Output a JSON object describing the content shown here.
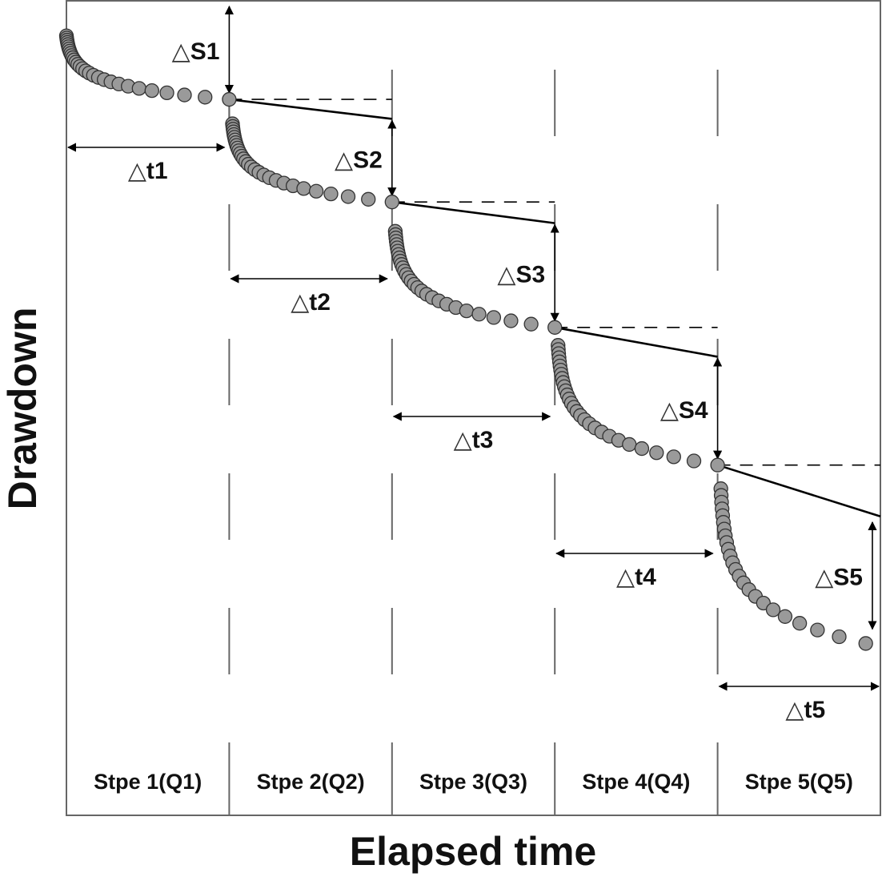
{
  "chart_data": {
    "type": "scatter",
    "title": "",
    "xlabel": "Elapsed time",
    "ylabel": "Drawdown",
    "xlim": [
      0,
      5
    ],
    "ylim": [
      0,
      100
    ],
    "y_inverted": true,
    "grid": false,
    "legend": "none",
    "steps": [
      {
        "label": "Stpe 1(Q1)",
        "dt_label": "t1",
        "ds_label": "S1",
        "start_drawdown": 4.3,
        "end_drawdown": 12.1,
        "extrapolated_end": 14.5,
        "n_points": 30
      },
      {
        "label": "Stpe 2(Q2)",
        "dt_label": "t2",
        "ds_label": "S2",
        "start_drawdown": 15.1,
        "end_drawdown": 24.7,
        "extrapolated_end": 27.3,
        "n_points": 30
      },
      {
        "label": "Stpe 3(Q3)",
        "dt_label": "t3",
        "ds_label": "S3",
        "start_drawdown": 28.3,
        "end_drawdown": 40.1,
        "extrapolated_end": 43.7,
        "n_points": 30
      },
      {
        "label": "Stpe 4(Q4)",
        "dt_label": "t4",
        "ds_label": "S4",
        "start_drawdown": 42.3,
        "end_drawdown": 57.0,
        "extrapolated_end": 63.3,
        "n_points": 30
      },
      {
        "label": "Stpe 5(Q5)",
        "dt_label": "t5",
        "ds_label": "S5",
        "start_drawdown": 59.9,
        "end_drawdown": 78.9,
        "n_points": 24,
        "end_time_fraction": 0.91
      }
    ],
    "delta_symbol": "△",
    "colors": {
      "point_fill": "#9a9a9a",
      "point_stroke": "#333333",
      "line": "#000000",
      "divider": "#666666"
    }
  }
}
